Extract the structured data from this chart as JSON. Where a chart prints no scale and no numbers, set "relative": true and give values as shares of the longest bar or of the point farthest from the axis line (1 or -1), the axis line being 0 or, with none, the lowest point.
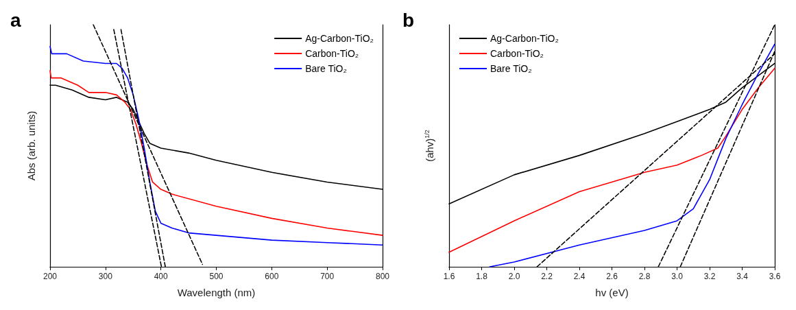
{
  "chart_data": [
    {
      "type": "line",
      "title": "a",
      "xlabel": "Wavelength (nm)",
      "ylabel": "Abs (arb. units)",
      "relative": true,
      "xlim": [
        200,
        800
      ],
      "xticks": [
        200,
        300,
        400,
        500,
        600,
        700,
        800
      ],
      "legend": "top right",
      "grid": false,
      "marker": "none",
      "line_style": "solid",
      "series": [
        {
          "name": "Ag-Carbon-TiO₂",
          "color": "#000000",
          "x": [
            200,
            210,
            240,
            270,
            300,
            320,
            340,
            350,
            360,
            370,
            380,
            390,
            400,
            450,
            500,
            600,
            700,
            800
          ],
          "values": [
            0.75,
            0.75,
            0.73,
            0.7,
            0.69,
            0.7,
            0.68,
            0.65,
            0.6,
            0.55,
            0.51,
            0.5,
            0.49,
            0.47,
            0.44,
            0.39,
            0.35,
            0.32
          ]
        },
        {
          "name": "Carbon-TiO₂",
          "color": "#ff0000",
          "x": [
            200,
            202,
            220,
            250,
            270,
            300,
            320,
            335,
            345,
            355,
            365,
            375,
            385,
            400,
            420,
            500,
            600,
            700,
            800
          ],
          "values": [
            0.81,
            0.78,
            0.78,
            0.75,
            0.72,
            0.72,
            0.71,
            0.68,
            0.65,
            0.59,
            0.51,
            0.42,
            0.35,
            0.32,
            0.3,
            0.25,
            0.2,
            0.16,
            0.13
          ]
        },
        {
          "name": "Bare TiO₂",
          "color": "#0000ff",
          "x": [
            200,
            203,
            230,
            260,
            300,
            320,
            330,
            340,
            350,
            360,
            370,
            380,
            390,
            400,
            420,
            450,
            500,
            600,
            700,
            800
          ],
          "values": [
            0.91,
            0.88,
            0.88,
            0.85,
            0.84,
            0.84,
            0.82,
            0.78,
            0.71,
            0.61,
            0.49,
            0.35,
            0.23,
            0.18,
            0.16,
            0.14,
            0.13,
            0.11,
            0.1,
            0.09
          ]
        },
        {
          "type": "line",
          "color": "#000000",
          "line_style": "dashed",
          "x": [
            278,
            475
          ],
          "values": [
            1,
            0.01
          ]
        },
        {
          "type": "line",
          "color": "#000000",
          "line_style": "dashed",
          "x": [
            315,
            401
          ],
          "values": [
            0.98,
            0
          ]
        },
        {
          "type": "line",
          "color": "#000000",
          "line_style": "dashed",
          "x": [
            328,
            408
          ],
          "values": [
            0.98,
            0
          ]
        }
      ]
    },
    {
      "type": "line",
      "title": "b",
      "xlabel": "hv (eV)",
      "ylabel": "(ahv)$^{1/2}$",
      "relative": true,
      "xlim": [
        1.6,
        3.6
      ],
      "xticks": [
        {
          "value": 1.6,
          "label": "1.6"
        },
        {
          "value": 1.8,
          "label": "1.8"
        },
        {
          "value": 2.0,
          "label": "2.0"
        },
        {
          "value": 2.2,
          "label": "2.2"
        },
        {
          "value": 2.4,
          "label": "2.4"
        },
        {
          "value": 2.6,
          "label": "2.6"
        },
        {
          "value": 2.8,
          "label": "2.8"
        },
        {
          "value": 3.0,
          "label": "3.0"
        },
        {
          "value": 3.2,
          "label": "3.2"
        },
        {
          "value": 3.4,
          "label": "3.4"
        },
        {
          "value": 3.6,
          "label": "3.6"
        }
      ],
      "legend": "top left",
      "grid": false,
      "marker": "none",
      "line_style": "solid",
      "series": [
        {
          "name": "Ag-Carbon-TiO₂",
          "color": "#000000",
          "x": [
            1.6,
            2.0,
            2.4,
            2.8,
            3.0,
            3.2,
            3.3,
            3.4,
            3.5,
            3.6
          ],
          "values": [
            0.26,
            0.38,
            0.46,
            0.55,
            0.6,
            0.65,
            0.68,
            0.74,
            0.79,
            0.84
          ]
        },
        {
          "name": "Carbon-TiO₂",
          "color": "#ff0000",
          "x": [
            1.6,
            2.0,
            2.4,
            2.8,
            3.0,
            3.15,
            3.25,
            3.3,
            3.4,
            3.5,
            3.6
          ],
          "values": [
            0.06,
            0.19,
            0.31,
            0.39,
            0.42,
            0.46,
            0.49,
            0.54,
            0.65,
            0.74,
            0.82
          ]
        },
        {
          "name": "Bare TiO₂",
          "color": "#0000ff",
          "x": [
            1.85,
            2.0,
            2.4,
            2.8,
            3.0,
            3.1,
            3.2,
            3.3,
            3.4,
            3.5,
            3.6
          ],
          "values": [
            0,
            0.02,
            0.09,
            0.15,
            0.19,
            0.24,
            0.36,
            0.53,
            0.67,
            0.8,
            0.92
          ]
        },
        {
          "type": "line",
          "color": "#000000",
          "line_style": "dashed",
          "x": [
            2.14,
            3.6
          ],
          "values": [
            0,
            0.88
          ]
        },
        {
          "type": "line",
          "color": "#000000",
          "line_style": "dashed",
          "x": [
            2.885,
            3.6
          ],
          "values": [
            0,
            1
          ]
        },
        {
          "type": "line",
          "color": "#000000",
          "line_style": "dashed",
          "x": [
            3.02,
            3.6
          ],
          "values": [
            0,
            0.89
          ]
        }
      ]
    }
  ]
}
